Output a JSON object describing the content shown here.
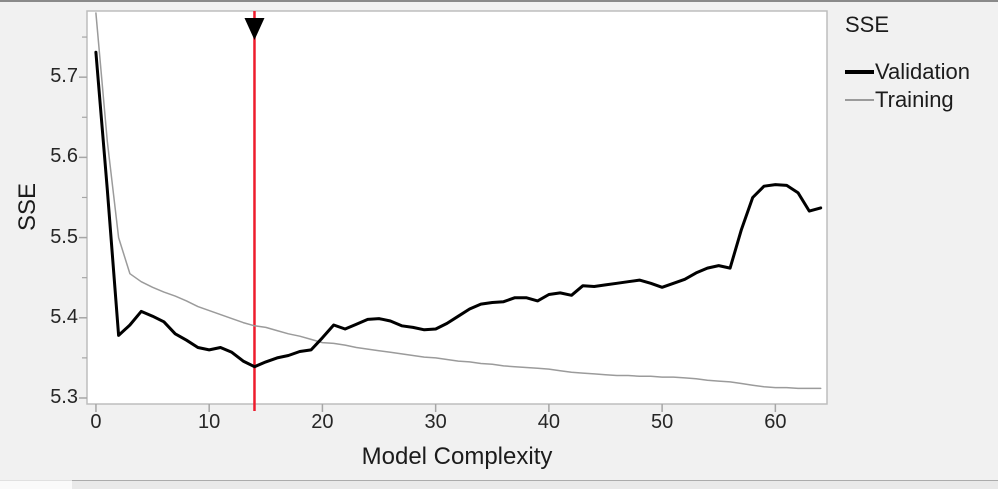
{
  "colors": {
    "background": "#f1f1f1",
    "plot_background": "#ffffff",
    "frame_border": "#bdbdbd",
    "tick_mark": "#a6a6a6",
    "tick_text": "#262626",
    "title_text": "#1c1c1c",
    "reference_line_red": "#ee1c2d",
    "validation_line": "#000000",
    "training_line": "#9b9b9b"
  },
  "chart_data": {
    "type": "line",
    "title": "",
    "xlabel": "Model Complexity",
    "ylabel": "SSE",
    "xlim": [
      -0.79,
      64.56
    ],
    "ylim": [
      5.2925,
      5.7825
    ],
    "xticks": [
      0,
      10,
      20,
      30,
      40,
      50,
      60
    ],
    "xtick_labels": [
      "0",
      "10",
      "20",
      "30",
      "40",
      "50",
      "60"
    ],
    "yticks": [
      5.3,
      5.4,
      5.5,
      5.6,
      5.7
    ],
    "ytick_labels": [
      "5.3",
      "5.4",
      "5.5",
      "5.6",
      "5.7"
    ],
    "yticks_minor": [
      5.35,
      5.45,
      5.55,
      5.65,
      5.75
    ],
    "grid": false,
    "legend": {
      "title": "SSE",
      "position": "right",
      "entries": [
        {
          "label": "Validation",
          "color": "#000000",
          "line_width": 4
        },
        {
          "label": "Training",
          "color": "#9b9b9b",
          "line_width": 2
        }
      ]
    },
    "reference_line": {
      "x": 14,
      "color": "#ee1c2d",
      "marker": "down-arrow",
      "marker_color": "#000000"
    },
    "x_start": 0,
    "x_step": 1,
    "series": [
      {
        "name": "Validation",
        "color": "#000000",
        "width": 3,
        "values": [
          5.731,
          5.56,
          5.378,
          5.391,
          5.408,
          5.402,
          5.395,
          5.38,
          5.372,
          5.363,
          5.36,
          5.363,
          5.357,
          5.346,
          5.339,
          5.345,
          5.35,
          5.353,
          5.358,
          5.36,
          5.375,
          5.391,
          5.386,
          5.392,
          5.398,
          5.399,
          5.396,
          5.39,
          5.388,
          5.385,
          5.386,
          5.393,
          5.402,
          5.411,
          5.417,
          5.419,
          5.42,
          5.425,
          5.425,
          5.421,
          5.429,
          5.431,
          5.428,
          5.44,
          5.439,
          5.441,
          5.443,
          5.445,
          5.447,
          5.443,
          5.438,
          5.443,
          5.448,
          5.456,
          5.462,
          5.465,
          5.462,
          5.51,
          5.55,
          5.564,
          5.566,
          5.565,
          5.556,
          5.533,
          5.537
        ]
      },
      {
        "name": "Training",
        "color": "#9b9b9b",
        "width": 1.5,
        "values": [
          5.78,
          5.62,
          5.5,
          5.455,
          5.445,
          5.438,
          5.432,
          5.427,
          5.421,
          5.414,
          5.409,
          5.404,
          5.399,
          5.394,
          5.39,
          5.388,
          5.384,
          5.38,
          5.377,
          5.373,
          5.369,
          5.368,
          5.366,
          5.363,
          5.361,
          5.359,
          5.357,
          5.355,
          5.353,
          5.351,
          5.35,
          5.348,
          5.346,
          5.345,
          5.343,
          5.342,
          5.34,
          5.339,
          5.338,
          5.337,
          5.336,
          5.334,
          5.332,
          5.331,
          5.33,
          5.329,
          5.328,
          5.328,
          5.327,
          5.327,
          5.326,
          5.326,
          5.325,
          5.324,
          5.322,
          5.321,
          5.32,
          5.318,
          5.316,
          5.314,
          5.313,
          5.313,
          5.312,
          5.312,
          5.312
        ]
      }
    ]
  }
}
